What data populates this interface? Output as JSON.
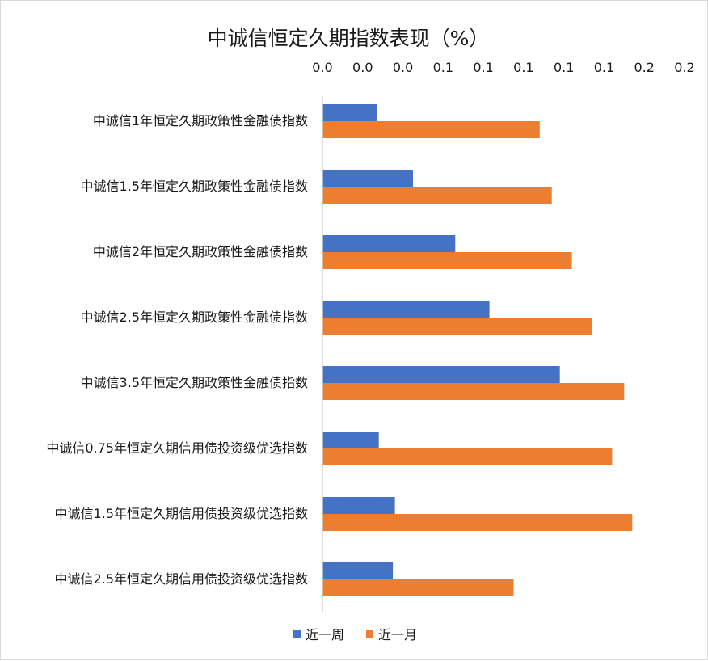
{
  "chart_data": {
    "type": "bar",
    "orientation": "horizontal",
    "title": "中诚信恒定久期指数表现（%）",
    "xlabel": "",
    "ylabel": "",
    "xlim": [
      0,
      0.18
    ],
    "x_tick_values": [
      0,
      0.02,
      0.04,
      0.06,
      0.08,
      0.1,
      0.12,
      0.14,
      0.16,
      0.18
    ],
    "x_tick_labels": [
      "0.0",
      "0.0",
      "0.0",
      "0.1",
      "0.1",
      "0.1",
      "0.1",
      "0.1",
      "0.2",
      "0.2"
    ],
    "x_axis_position": "top",
    "grid": false,
    "legend_position": "bottom",
    "categories": [
      "中诚信1年恒定久期政策性金融债指数",
      "中诚信1.5年恒定久期政策性金融债指数",
      "中诚信2年恒定久期政策性金融债指数",
      "中诚信2.5年恒定久期政策性金融债指数",
      "中诚信3.5年恒定久期政策性金融债指数",
      "中诚信0.75年恒定久期信用债投资级优选指数",
      "中诚信1.5年恒定久期信用债投资级优选指数",
      "中诚信2.5年恒定久期信用债投资级优选指数"
    ],
    "series": [
      {
        "name": "近一周",
        "color": "#4472c4",
        "values": [
          0.027,
          0.045,
          0.066,
          0.083,
          0.118,
          0.028,
          0.036,
          0.035
        ]
      },
      {
        "name": "近一月",
        "color": "#ed7d31",
        "values": [
          0.108,
          0.114,
          0.124,
          0.134,
          0.15,
          0.144,
          0.154,
          0.095
        ]
      }
    ]
  }
}
